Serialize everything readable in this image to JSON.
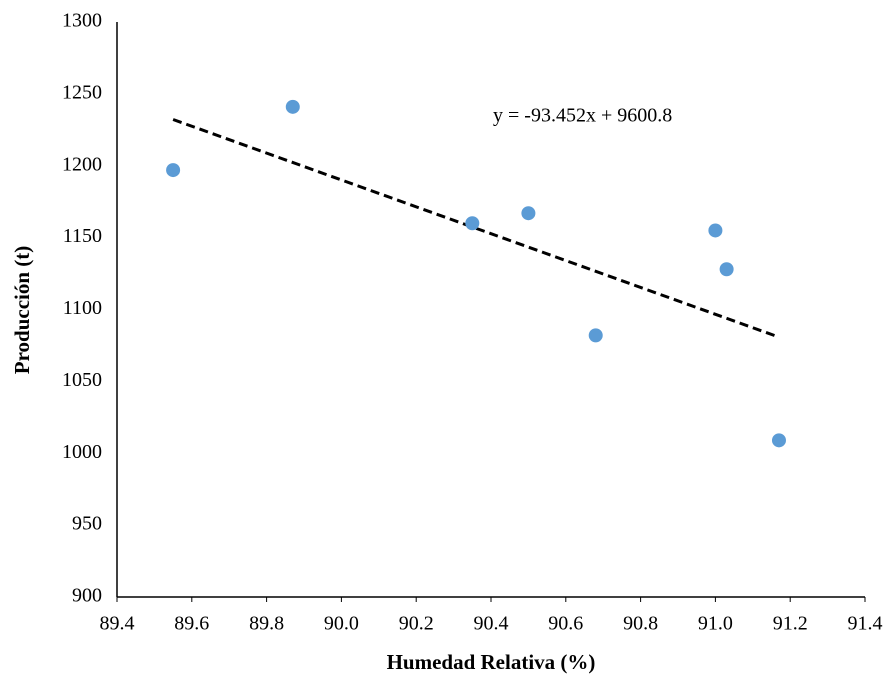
{
  "chart_data": {
    "type": "scatter",
    "x_label": "Humedad Relativa (%)",
    "y_label": "Producción (t)",
    "color": "#5b9bd5",
    "series": [
      {
        "x": [
          89.55,
          89.87,
          90.35,
          90.5,
          90.68,
          91.0,
          91.03,
          91.17
        ],
        "values": [
          1197,
          1241,
          1160,
          1167,
          1082,
          1155,
          1128,
          1009
        ]
      }
    ],
    "trendline": {
      "label": "y = -93.452x + 9600.8",
      "slope": -93.452,
      "intercept": 9600.8,
      "color": "#000000"
    },
    "xlim": [
      89.4,
      91.4
    ],
    "xticks": [
      89.4,
      89.6,
      89.8,
      {
        "value": 90,
        "label": "90.0"
      },
      90.2,
      90.4,
      90.6,
      90.8,
      {
        "value": 91,
        "label": "91.0"
      },
      91.2,
      91.4
    ],
    "ylim": [
      900,
      1300
    ],
    "yticks": [
      900,
      950,
      1000,
      1050,
      1100,
      1150,
      1200,
      1250,
      1300
    ],
    "grid": false
  }
}
